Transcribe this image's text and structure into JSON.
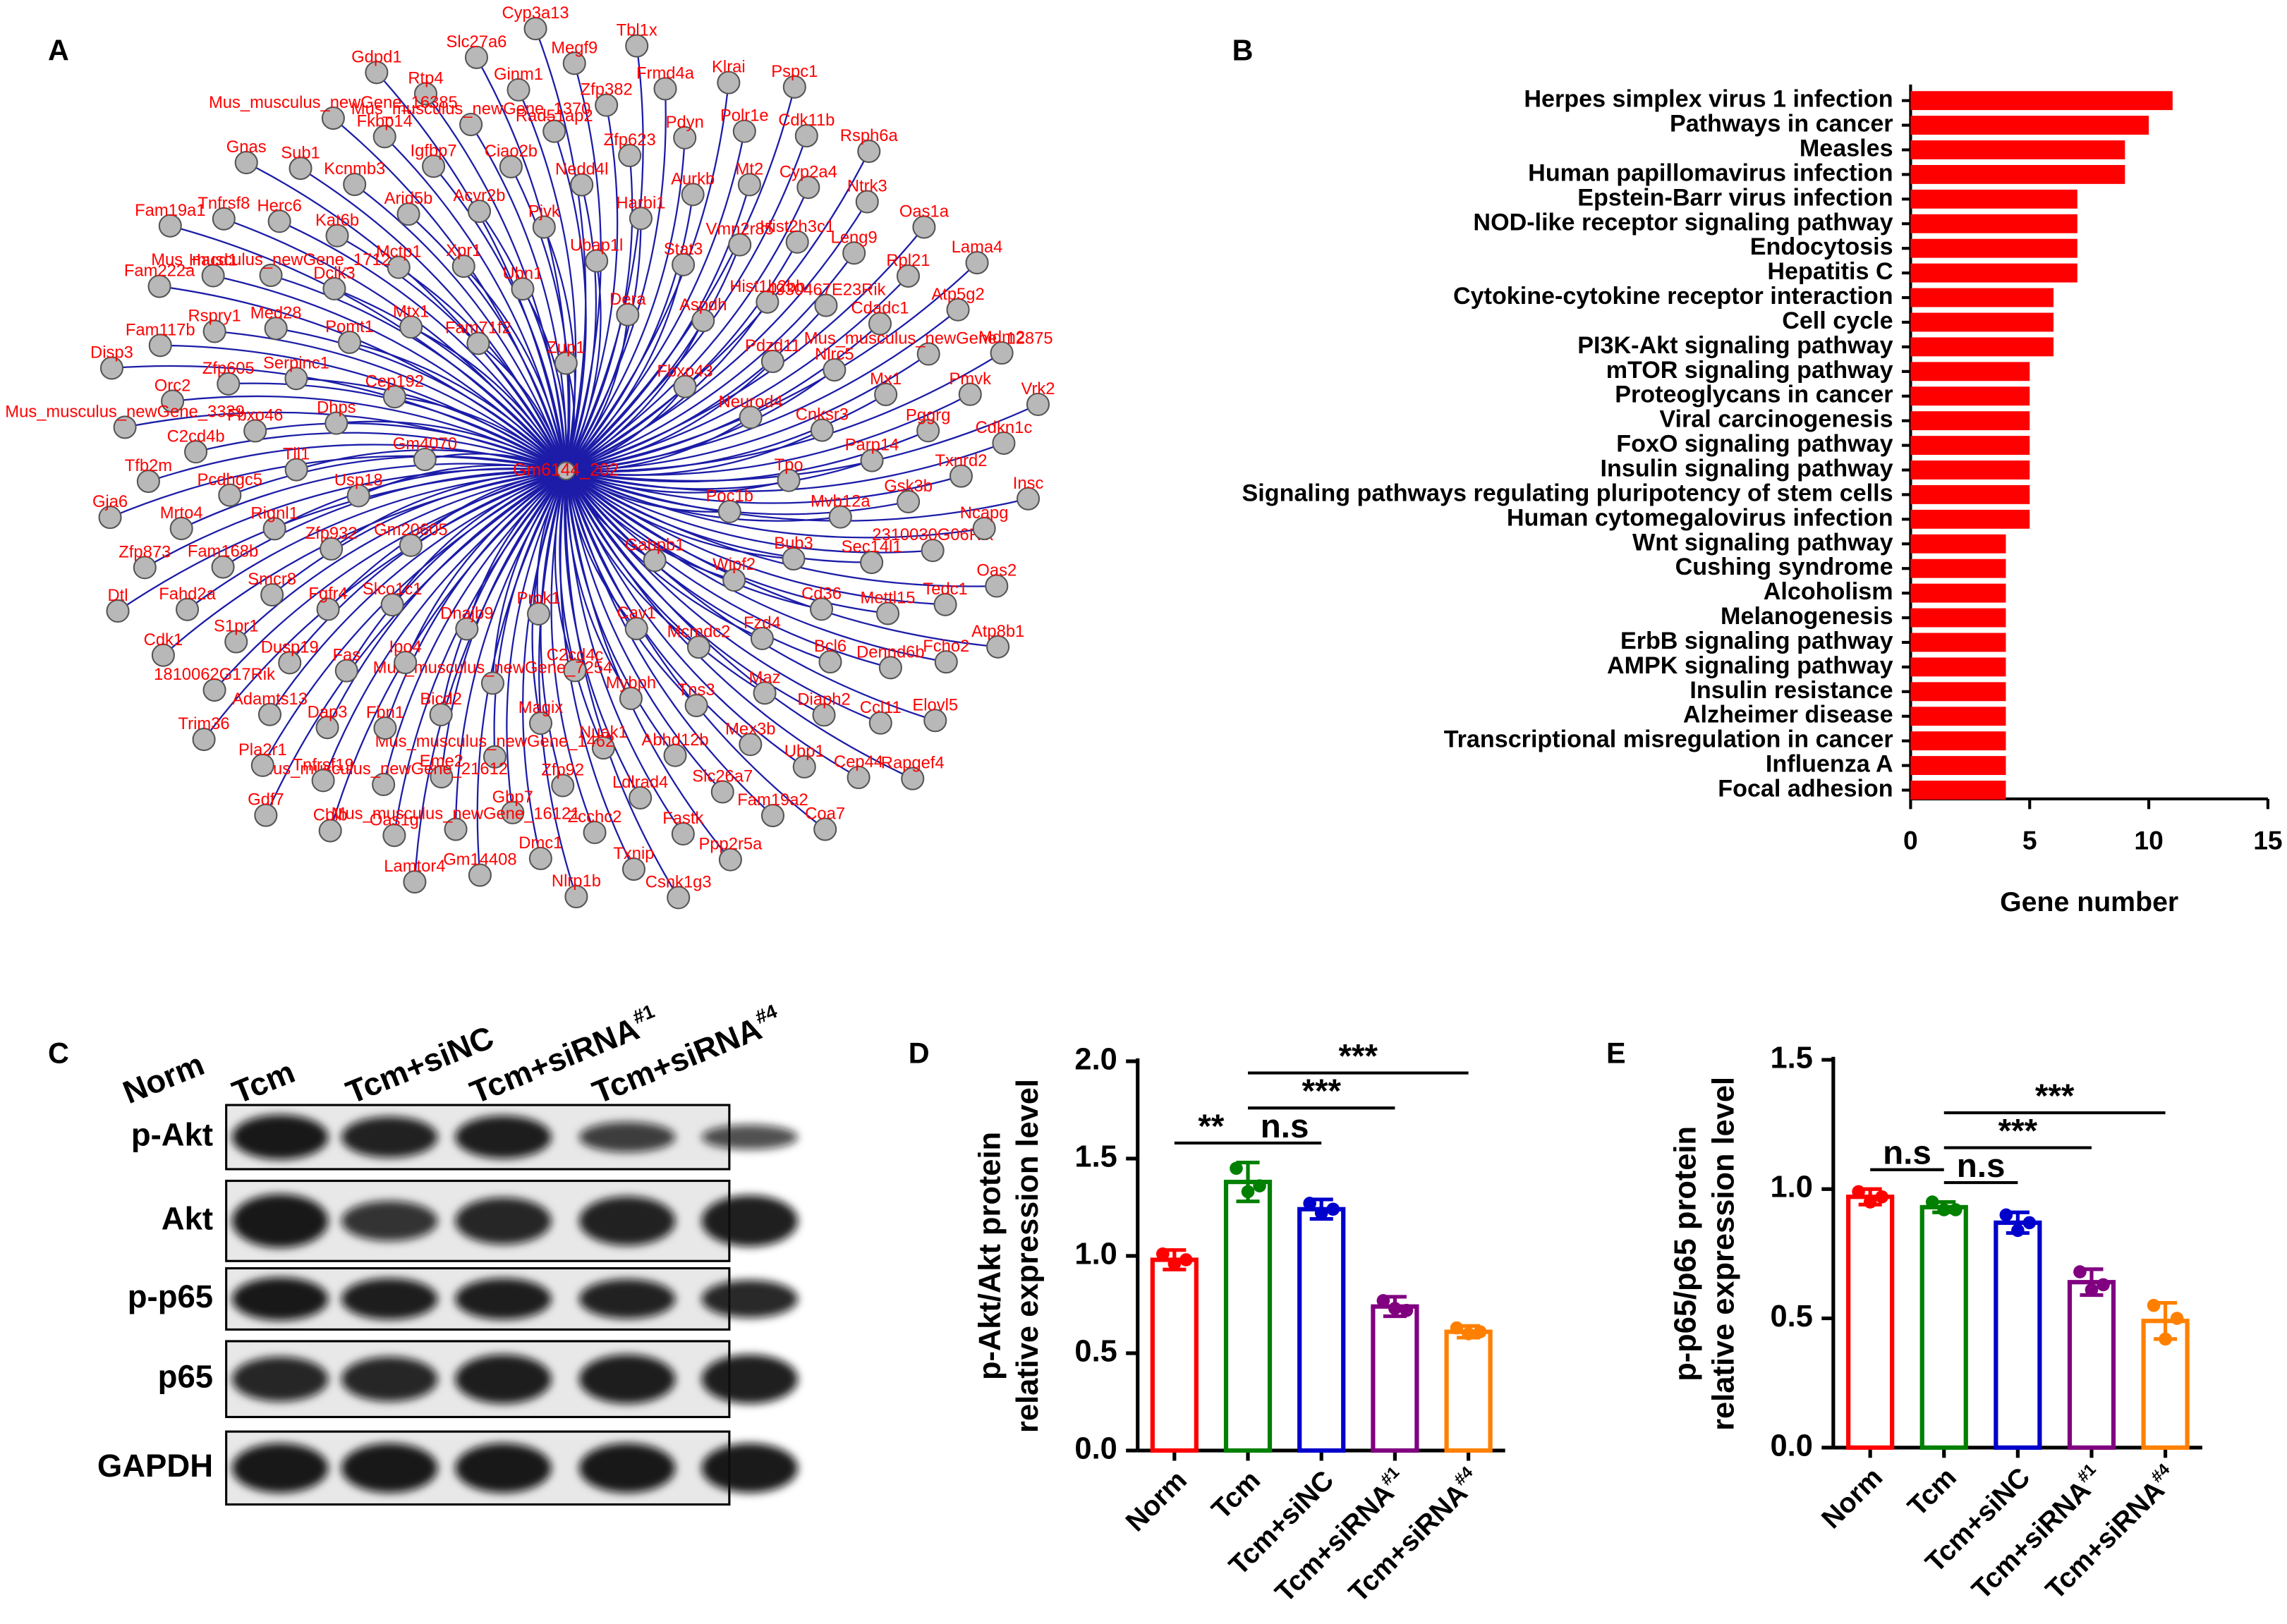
{
  "panel_labels": [
    "A",
    "B",
    "C",
    "D",
    "E"
  ],
  "network": {
    "center": "Gm6144_202",
    "nodes": [
      "Zup1",
      "Gabpb1",
      "Gm4070",
      "Fbxo43",
      "Prok1",
      "Fam71f2",
      "Poc1b",
      "Gm20605",
      "Dera",
      "Cav1",
      "Cep192",
      "Neurod4",
      "Dnajb9",
      "Ubn1",
      "Wipf2",
      "Usp18",
      "Aspdh",
      "C2cd4c",
      "Mtx1",
      "Tpo",
      "Slco1c1",
      "Ubap1l",
      "Mcmdc2",
      "Dhps",
      "Pdzd11",
      "Mus_musculus_newGene_7254",
      "Xpr1",
      "Bub3",
      "Zfp932",
      "Stat3",
      "Mybph",
      "Pomt1",
      "Cnksr3",
      "Ipo4",
      "Pjvk",
      "Fzd4",
      "Tll1",
      "Hist1h2bb",
      "Magix",
      "Mctp1",
      "Mvb12a",
      "Fgfr4",
      "Harbi1",
      "Tns3",
      "Serpinc1",
      "Nlrc5",
      "Bicd2",
      "Acvr2b",
      "Cd36",
      "Rignl1",
      "Vmn2r85",
      "Nuak1",
      "Dclk3",
      "Parp14",
      "Fas",
      "Nedd4l",
      "Maz",
      "Fbxo46",
      "4930467E23Rik",
      "Mus_musculus_newGene_1462",
      "Arid5b",
      "Sec14l1",
      "Smcr8",
      "Aurkb",
      "Abhd12b",
      "Med28",
      "Mx1",
      "Fbn1",
      "Ciao2b",
      "Bcl6",
      "Pcdhgc5",
      "Hist2h3c1",
      "Zfp92",
      "Kat6b",
      "Gsk3b",
      "Dusp19",
      "Zfp623",
      "Mex3b",
      "Zfp605",
      "Cdadc1",
      "Eme2",
      "Igfbp7",
      "Mettl15",
      "Fam168b",
      "Mt2",
      "Ldlrad4",
      "Mus_musculus_newGene_1712",
      "Pggrg",
      "Dap3",
      "Rad51ap2",
      "Diaph2",
      "C2cd4b",
      "Leng9",
      "Gbp7",
      "Kcnmb3",
      "2310030G06Rik",
      "S1pr1",
      "Pdyn",
      "Slc26a7",
      "Rspry1",
      "Mus_musculus_newGene_12875",
      "Mus_musculus_newGene_21612",
      "Mus_musculus_newGene_1370",
      "Dennd6b",
      "Mrto4",
      "Cyp2a4",
      "Zcchc2",
      "Herc6",
      "Txnrd2",
      "Adamts13",
      "Zfp382",
      "Ubp1",
      "Orc2",
      "Rpl21",
      "Mus_musculus_newGene_16121",
      "Fkbp14",
      "Tedc1",
      "Fahd2a",
      "Polr1e",
      "Fastk",
      "Hacd1",
      "Pmvk",
      "Tnfrsf19",
      "Ginm1",
      "Ccl11",
      "Tfb2m",
      "Ntrk3",
      "Dmc1",
      "Sub1",
      "Ncapg",
      "1810062G17Rik",
      "Frmd4a",
      "Fam19a2",
      "Fam117b",
      "Atp5g2",
      "Oas1g",
      "Rtp4",
      "Fcho2",
      "Zfp873",
      "Cdk11b",
      "Txnip",
      "Tnfrsf8",
      "Cdkn1c",
      "Pla2r1",
      "Megf9",
      "Cep44",
      "Mus_musculus_newGene_3339",
      "Oas1a",
      "Gm14408",
      "Mus_musculus_newGene_16385",
      "Oas2",
      "Cdk1",
      "Klrai",
      "Ppp2r5a",
      "Fam222a",
      "Mdm2",
      "Cblb",
      "Slc27a6",
      "Elovl5",
      "Gja6",
      "Rsph6a",
      "Nlrp1b",
      "Gnas",
      "Insc",
      "Trim36",
      "Tbl1x",
      "Coa7",
      "Disp3",
      "Lama4",
      "Lamtor4",
      "Gdpd1",
      "Atp8b1",
      "Dtl",
      "Pspc1",
      "Csnk1g3",
      "Fam19a1",
      "Vrk2",
      "Gdf7",
      "Cyp3a13",
      "Rapgef4"
    ]
  },
  "blot": {
    "lanes": [
      "Norm",
      "Tcm",
      "Tcm+siNC",
      "Tcm+siRNA#1",
      "Tcm+siRNA#4"
    ],
    "rows": [
      "p-Akt",
      "Akt",
      "p-p65",
      "p65",
      "GAPDH"
    ]
  },
  "chart_data": [
    {
      "type": "bar",
      "orientation": "horizontal",
      "color": "#ff0000",
      "xlabel": "Gene number",
      "categories": [
        "Herpes simplex virus 1 infection",
        "Pathways in cancer",
        "Measles",
        "Human papillomavirus infection",
        "Epstein-Barr virus infection",
        "NOD-like receptor signaling pathway",
        "Endocytosis",
        "Hepatitis C",
        "Cytokine-cytokine receptor interaction",
        "Cell cycle",
        "PI3K-Akt signaling pathway",
        "mTOR signaling pathway",
        "Proteoglycans in cancer",
        "Viral carcinogenesis",
        "FoxO signaling pathway",
        "Insulin signaling pathway",
        "Signaling pathways regulating pluripotency of stem cells",
        "Human cytomegalovirus infection",
        "Wnt signaling pathway",
        "Cushing syndrome",
        "Alcoholism",
        "Melanogenesis",
        "ErbB signaling pathway",
        "AMPK signaling pathway",
        "Insulin resistance",
        "Alzheimer disease",
        "Transcriptional misregulation in cancer",
        "Influenza A",
        "Focal adhesion"
      ],
      "values": [
        11,
        10,
        9,
        9,
        7,
        7,
        7,
        7,
        6,
        6,
        6,
        5,
        5,
        5,
        5,
        5,
        5,
        5,
        4,
        4,
        4,
        4,
        4,
        4,
        4,
        4,
        4,
        4,
        4
      ],
      "xlim": [
        0,
        15
      ],
      "xticks": [
        0,
        5,
        10,
        15
      ]
    },
    {
      "type": "bar",
      "ylabel": [
        "p-Akt/Akt protein",
        "relative expression level"
      ],
      "categories": [
        "Norm",
        "Tcm",
        "Tcm+siNC",
        "Tcm+siRNA#1",
        "Tcm+siRNA#4"
      ],
      "colors": [
        "#ff0000",
        "#008000",
        "#0000cc",
        "#800080",
        "#ff8000"
      ],
      "values": [
        0.98,
        1.38,
        1.24,
        0.74,
        0.61
      ],
      "errors": [
        0.05,
        0.1,
        0.05,
        0.05,
        0.03
      ],
      "points": [
        [
          1.01,
          0.96,
          0.98
        ],
        [
          1.45,
          1.33,
          1.36
        ],
        [
          1.27,
          1.22,
          1.24
        ],
        [
          0.77,
          0.73,
          0.72
        ],
        [
          0.63,
          0.6,
          0.61
        ]
      ],
      "ylim": [
        0,
        2.0
      ],
      "yticks": [
        {
          "value": 0,
          "label": "0.0"
        },
        {
          "value": 0.5,
          "label": "0.5"
        },
        {
          "value": 1,
          "label": "1.0"
        },
        {
          "value": 1.5,
          "label": "1.5"
        },
        {
          "value": 2,
          "label": "2.0"
        }
      ],
      "comparisons": [
        {
          "pair": [
            0,
            1
          ],
          "label": "**"
        },
        {
          "pair": [
            1,
            2
          ],
          "label": "n.s"
        },
        {
          "pair": [
            1,
            3
          ],
          "label": "***"
        },
        {
          "pair": [
            1,
            4
          ],
          "label": "***"
        }
      ]
    },
    {
      "type": "bar",
      "ylabel": [
        "p-p65/p65 protein",
        "relative expression level"
      ],
      "categories": [
        "Norm",
        "Tcm",
        "Tcm+siNC",
        "Tcm+siRNA#1",
        "Tcm+siRNA#4"
      ],
      "colors": [
        "#ff0000",
        "#008000",
        "#0000cc",
        "#800080",
        "#ff8000"
      ],
      "values": [
        0.97,
        0.93,
        0.87,
        0.64,
        0.49
      ],
      "errors": [
        0.03,
        0.02,
        0.04,
        0.05,
        0.07
      ],
      "points": [
        [
          0.99,
          0.95,
          0.97
        ],
        [
          0.95,
          0.92,
          0.92
        ],
        [
          0.9,
          0.84,
          0.87
        ],
        [
          0.68,
          0.61,
          0.63
        ],
        [
          0.55,
          0.42,
          0.5
        ]
      ],
      "ylim": [
        0,
        1.5
      ],
      "yticks": [
        {
          "value": 0,
          "label": "0.0"
        },
        {
          "value": 0.5,
          "label": "0.5"
        },
        {
          "value": 1,
          "label": "1.0"
        },
        {
          "value": 1.5,
          "label": "1.5"
        }
      ],
      "comparisons": [
        {
          "pair": [
            0,
            1
          ],
          "label": "n.s"
        },
        {
          "pair": [
            1,
            2
          ],
          "label": "n.s"
        },
        {
          "pair": [
            1,
            3
          ],
          "label": "***"
        },
        {
          "pair": [
            1,
            4
          ],
          "label": "***"
        }
      ]
    }
  ]
}
